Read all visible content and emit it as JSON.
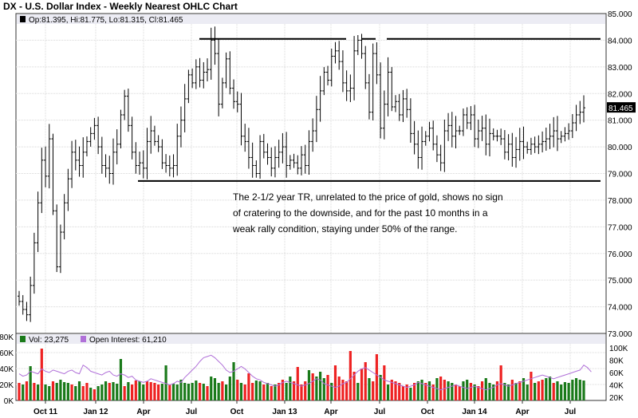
{
  "chart_data": [
    {
      "type": "ohlc",
      "title": "DX - U.S. Dollar Index - Weekly Nearest OHLC Chart",
      "legend_text": "Op:81.395, Hi:81.775, Lo:81.315, Cl:81.465",
      "last_value_label": "81.465",
      "y_range": [
        73,
        85
      ],
      "y_ticks": [
        "73.000",
        "74.000",
        "75.000",
        "76.000",
        "77.000",
        "78.000",
        "79.000",
        "80.000",
        "81.000",
        "82.000",
        "83.000",
        "84.000",
        "85.000"
      ],
      "x_labels": [
        "Oct 11",
        "Jan 12",
        "Apr",
        "Jul",
        "Oct",
        "Jan 13",
        "Apr",
        "Jul",
        "Oct",
        "Jan 14",
        "Apr",
        "Jul"
      ],
      "grid": true,
      "annotation": [
        "The 2-1/2 year TR, unrelated to the price of gold, shows no sign",
        "of cratering to the downside, and for the past 10 months in a",
        "weak rally condition, staying under 50% of the range."
      ],
      "support_level": 78.72,
      "resistance_level": 84.05,
      "closes": [
        74.2,
        73.9,
        73.7,
        74.8,
        76.4,
        77.9,
        79.5,
        78.9,
        80.3,
        77.6,
        75.5,
        76.8,
        77.9,
        78.8,
        79.8,
        79.5,
        79.3,
        79.8,
        80.2,
        80.5,
        80.8,
        80.0,
        79.3,
        79.2,
        79.0,
        79.8,
        80.1,
        81.2,
        81.9,
        80.8,
        79.8,
        79.3,
        79.4,
        79.2,
        80.2,
        80.6,
        80.2,
        80.0,
        79.4,
        79.3,
        79.2,
        79.3,
        80.4,
        81.0,
        81.8,
        82.7,
        82.4,
        83.0,
        82.5,
        82.8,
        82.9,
        84.0,
        83.5,
        81.6,
        82.4,
        83.3,
        82.2,
        81.7,
        81.6,
        80.4,
        80.2,
        79.6,
        79.3,
        79.0,
        80.2,
        79.8,
        79.6,
        79.2,
        79.6,
        79.8,
        80.0,
        79.3,
        79.5,
        79.4,
        79.2,
        79.7,
        79.3,
        80.2,
        80.6,
        81.4,
        82.1,
        82.8,
        82.5,
        83.4,
        83.6,
        83.2,
        82.4,
        82.1,
        82.2,
        83.6,
        84.0,
        83.5,
        82.4,
        81.3,
        83.5,
        82.7,
        80.7,
        81.6,
        82.8,
        81.5,
        81.7,
        81.2,
        81.8,
        81.4,
        80.5,
        80.1,
        79.6,
        80.2,
        80.4,
        80.7,
        80.1,
        79.7,
        79.4,
        80.6,
        80.8,
        80.4,
        80.6,
        80.6,
        81.2,
        80.9,
        81.2,
        80.3,
        80.6,
        80.7,
        80.1,
        80.5,
        80.4,
        80.4,
        80.3,
        79.8,
        80.1,
        79.6,
        79.9,
        80.2,
        80.0,
        79.9,
        80.1,
        80.0,
        80.1,
        80.2,
        80.3,
        80.4,
        80.6,
        80.3,
        80.4,
        80.5,
        80.6,
        80.9,
        81.2,
        81.3,
        81.465
      ],
      "series_names": []
    },
    {
      "type": "bar",
      "legend": [
        "Vol: 23,275",
        "Open Interest: 61,210"
      ],
      "left_ticks": [
        "0K",
        "20K",
        "40K",
        "60K",
        "80K"
      ],
      "right_ticks": [
        "20K",
        "40K",
        "60K",
        "80K",
        "100K"
      ],
      "volume_k": [
        22,
        20,
        24,
        43,
        22,
        20,
        65,
        20,
        18,
        24,
        22,
        26,
        23,
        22,
        20,
        18,
        24,
        18,
        22,
        16,
        14,
        18,
        20,
        24,
        22,
        23,
        21,
        52,
        18,
        23,
        20,
        25,
        24,
        20,
        24,
        23,
        22,
        20,
        21,
        44,
        20,
        21,
        20,
        26,
        22,
        21,
        22,
        25,
        22,
        21,
        18,
        30,
        28,
        22,
        24,
        20,
        30,
        48,
        26,
        22,
        20,
        34,
        22,
        25,
        24,
        20,
        22,
        18,
        20,
        22,
        26,
        22,
        30,
        24,
        42,
        20,
        24,
        38,
        34,
        30,
        36,
        28,
        32,
        22,
        44,
        30,
        26,
        24,
        62,
        36,
        22,
        40,
        48,
        28,
        24,
        58,
        32,
        44,
        20,
        26,
        24,
        22,
        18,
        20,
        16,
        22,
        24,
        26,
        22,
        24,
        20,
        28,
        30,
        26,
        24,
        22,
        20,
        18,
        24,
        26,
        22,
        20,
        18,
        24,
        28,
        22,
        20,
        24,
        44,
        22,
        20,
        26,
        22,
        24,
        28,
        20,
        36,
        22,
        24,
        26,
        28,
        30,
        22,
        24,
        20,
        23,
        22,
        26,
        28,
        26,
        25,
        24,
        23
      ],
      "volume_colors": [
        "r",
        "g",
        "r",
        "g",
        "r",
        "g",
        "r",
        "g",
        "g",
        "r",
        "g",
        "g",
        "g",
        "g",
        "r",
        "g",
        "g",
        "r",
        "r",
        "g",
        "r",
        "g",
        "g",
        "g",
        "r",
        "g",
        "g",
        "g",
        "r",
        "g",
        "r",
        "r",
        "g",
        "g",
        "r",
        "r",
        "r",
        "r",
        "g",
        "g",
        "r",
        "g",
        "g",
        "g",
        "g",
        "g",
        "g",
        "g",
        "r",
        "g",
        "r",
        "g",
        "g",
        "g",
        "r",
        "g",
        "g",
        "g",
        "r",
        "g",
        "r",
        "r",
        "r",
        "g",
        "g",
        "r",
        "g",
        "r",
        "g",
        "r",
        "r",
        "g",
        "g",
        "r",
        "r",
        "r",
        "r",
        "g",
        "r",
        "g",
        "g",
        "g",
        "r",
        "g",
        "r",
        "r",
        "r",
        "r",
        "r",
        "r",
        "g",
        "r",
        "r",
        "g",
        "r",
        "r",
        "g",
        "r",
        "g",
        "r",
        "r",
        "r",
        "r",
        "r",
        "g",
        "r",
        "g",
        "g",
        "r",
        "g",
        "r",
        "g",
        "r",
        "r",
        "g",
        "g",
        "r",
        "r",
        "g",
        "g",
        "r",
        "g",
        "r",
        "r",
        "g",
        "g",
        "g",
        "r",
        "r",
        "g",
        "g",
        "r",
        "g",
        "r",
        "g",
        "g",
        "r",
        "g",
        "r",
        "r",
        "g",
        "g",
        "r",
        "g",
        "g",
        "g",
        "g",
        "g",
        "g",
        "g",
        "g",
        "r",
        "g",
        "g",
        "g"
      ],
      "open_interest_k": [
        58,
        54,
        56,
        62,
        60,
        58,
        66,
        62,
        60,
        64,
        62,
        60,
        58,
        62,
        64,
        60,
        58,
        72,
        68,
        62,
        60,
        58,
        56,
        60,
        62,
        56,
        54,
        58,
        56,
        52,
        54,
        48,
        46,
        44,
        46,
        50,
        48,
        46,
        44,
        42,
        40,
        42,
        46,
        44,
        52,
        58,
        64,
        70,
        78,
        84,
        86,
        88,
        84,
        78,
        72,
        64,
        60,
        62,
        66,
        70,
        66,
        60,
        54,
        50,
        48,
        44,
        42,
        40,
        38,
        40,
        44,
        46,
        44,
        42,
        40,
        38,
        40,
        42,
        46,
        50,
        48,
        42,
        40,
        38,
        36,
        38,
        42,
        44,
        50,
        56,
        62,
        66,
        68,
        64,
        60,
        56,
        52,
        48,
        46,
        44,
        42,
        40,
        38,
        36,
        38,
        40,
        44,
        42,
        40,
        38,
        36,
        34,
        32,
        34,
        36,
        38,
        40,
        38,
        36,
        34,
        36,
        38,
        36,
        34,
        32,
        34,
        36,
        40,
        42,
        40,
        38,
        40,
        42,
        44,
        46,
        48,
        50,
        52,
        54,
        56,
        54,
        52,
        50,
        52,
        54,
        56,
        58,
        60,
        62,
        64,
        72,
        68,
        61
      ]
    }
  ]
}
